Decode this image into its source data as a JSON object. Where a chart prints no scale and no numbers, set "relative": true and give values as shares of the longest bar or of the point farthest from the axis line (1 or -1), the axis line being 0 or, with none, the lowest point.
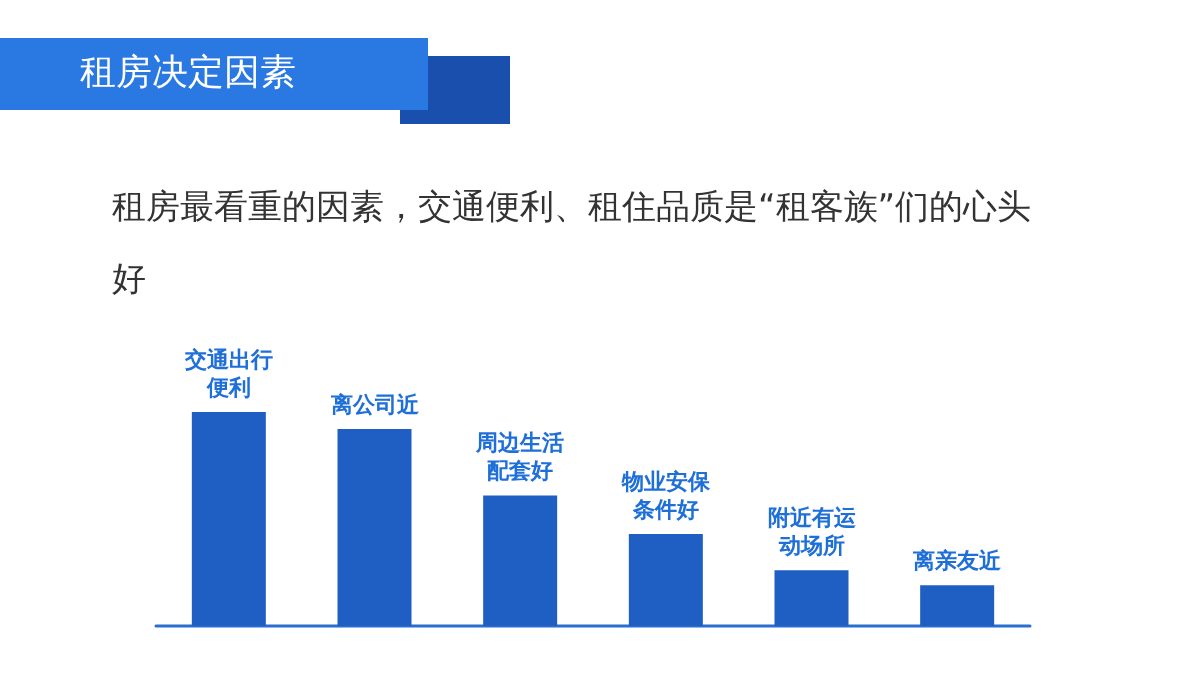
{
  "chart_data": {
    "type": "bar",
    "title": "租房决定因素",
    "subtitle": "租房最看重的因素，交通便利、租住品质是“租客族”们的心头好",
    "categories": [
      "交通出行便利",
      "离公司近",
      "周边生活配套好",
      "物业安保条件好",
      "附近有运动场所",
      "离亲友近"
    ],
    "values": [
      1,
      0.92,
      0.61,
      0.43,
      0.26,
      0.19
    ],
    "color": "#1f5fc4",
    "relative": true,
    "grid": false
  }
}
